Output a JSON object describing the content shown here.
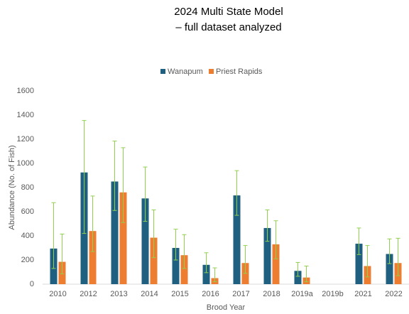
{
  "chart_data": {
    "type": "bar",
    "title": "2024 Multi State Model",
    "subtitle": "– full dataset analyzed",
    "x_label": "Brood Year",
    "y_label": "Abundance (No. of Fish)",
    "categories": [
      "2010",
      "2012",
      "2013",
      "2014",
      "2015",
      "2016",
      "2017",
      "2018",
      "2019a",
      "2019b",
      "2021",
      "2022"
    ],
    "series": [
      {
        "name": "Wanapum",
        "color": "#1f5f7f",
        "values": [
          295,
          925,
          850,
          710,
          300,
          160,
          735,
          465,
          110,
          null,
          335,
          250
        ],
        "lower": [
          130,
          420,
          610,
          520,
          200,
          95,
          570,
          355,
          65,
          null,
          245,
          170
        ],
        "upper": [
          675,
          1355,
          1185,
          970,
          455,
          260,
          940,
          615,
          180,
          null,
          465,
          375
        ]
      },
      {
        "name": "Priest Rapids",
        "color": "#ed7d31",
        "values": [
          185,
          440,
          760,
          385,
          240,
          50,
          175,
          330,
          55,
          null,
          150,
          175
        ],
        "lower": [
          85,
          270,
          510,
          220,
          130,
          20,
          90,
          210,
          20,
          null,
          60,
          70
        ],
        "upper": [
          415,
          730,
          1130,
          615,
          410,
          135,
          320,
          525,
          150,
          null,
          320,
          380
        ]
      }
    ],
    "error_color": "#92d050",
    "ylim": [
      0,
      1600
    ],
    "yticks": [
      0,
      200,
      400,
      600,
      800,
      1000,
      1200,
      1400,
      1600
    ],
    "grid": false,
    "legend": "top"
  }
}
